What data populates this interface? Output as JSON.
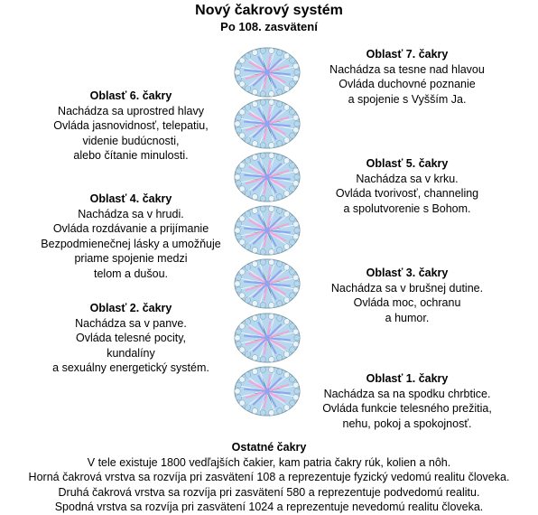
{
  "title": "Nový čakrový systém",
  "subtitle": "Po 108. zasvätení",
  "chakras": [
    {
      "id": "7",
      "side": "right",
      "heading": "Oblasť 7. čakry",
      "lines": [
        "Nachádza sa tesne nad hlavou",
        "Ovláda duchovné poznanie",
        "a spojenie s Vyšším Ja."
      ]
    },
    {
      "id": "6",
      "side": "left",
      "heading": "Oblasť 6. čakry",
      "lines": [
        "Nachádza sa uprostred hlavy",
        "Ovláda jasnovidnosť, telepatiu,",
        "videnie budúcnosti,",
        "alebo čítanie minulosti."
      ]
    },
    {
      "id": "5",
      "side": "right",
      "heading": "Oblasť 5. čakry",
      "lines": [
        "Nachádza sa v krku.",
        "Ovláda tvorivosť, channeling",
        "a spolutvorenie s Bohom."
      ]
    },
    {
      "id": "4",
      "side": "left",
      "heading": "Oblasť 4. čakry",
      "lines": [
        "Nachádza sa v hrudi.",
        "Ovláda rozdávanie a prijímanie",
        "Bezpodmienečnej lásky a umožňuje",
        "priame spojenie medzi",
        "telom a dušou."
      ]
    },
    {
      "id": "3",
      "side": "right",
      "heading": "Oblasť 3. čakry",
      "lines": [
        "Nachádza sa v brušnej dutine.",
        "Ovláda moc, ochranu",
        "a humor."
      ]
    },
    {
      "id": "2",
      "side": "left",
      "heading": "Oblasť 2. čakry",
      "lines": [
        "Nachádza sa v panve.",
        "Ovláda telesné pocity,",
        "kundalíny",
        "a sexuálny energetický systém."
      ]
    },
    {
      "id": "1",
      "side": "right",
      "heading": "Oblasť 1. čakry",
      "lines": [
        "Nachádza sa na spodku chrbtice.",
        "Ovláda funkcie telesného prežitia,",
        "nehu, pokoj a spokojnosť."
      ]
    }
  ],
  "footer": {
    "heading": "Ostatné čakry",
    "lines": [
      "V tele existuje 1800 vedľajších čakier, kam patria čakry rúk, kolien a nôh.",
      "Horná čakrová vrstva sa rozvíja pri zasvätení 108 a reprezentuje fyzický vedomú realitu človeka.",
      "Druhá čakrová vrstva sa rozvíja pri zasvätení 580 a reprezentuje podvedomú realitu.",
      "Spodná vrstva sa rozvíja pri zasvätení 1024 a reprezentuje nevedomú realitu človeka."
    ]
  },
  "colors": {
    "petal_blue": "#8aa6f0",
    "petal_pink": "#f0a6d8",
    "petal_green": "#3f8c76",
    "petal_lightblue": "#b6d8ef",
    "outline": "#7a9aa6"
  }
}
